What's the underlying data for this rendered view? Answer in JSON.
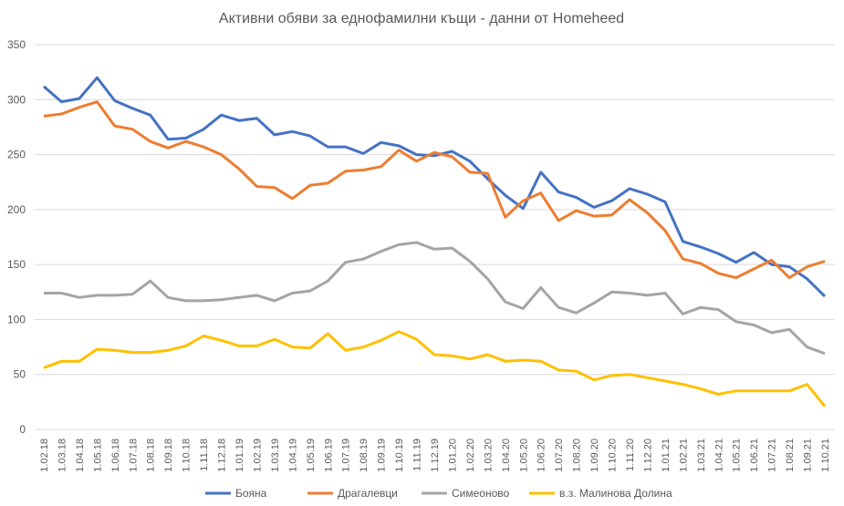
{
  "chart_data": {
    "type": "line",
    "title": "Активни обяви за еднофамилни къщи - данни от Homeheed",
    "xlabel": "",
    "ylabel": "",
    "ylim": [
      0,
      350
    ],
    "yticks": [
      0,
      50,
      100,
      150,
      200,
      250,
      300,
      350
    ],
    "grid": true,
    "legend_position": "bottom",
    "categories": [
      "1.02.18",
      "1.03.18",
      "1.04.18",
      "1.05.18",
      "1.06.18",
      "1.07.18",
      "1.08.18",
      "1.09.18",
      "1.10.18",
      "1.11.18",
      "1.12.18",
      "1.01.19",
      "1.02.19",
      "1.03.19",
      "1.04.19",
      "1.05.19",
      "1.06.19",
      "1.07.19",
      "1.08.19",
      "1.09.19",
      "1.10.19",
      "1.11.19",
      "1.12.19",
      "1.01.20",
      "1.02.20",
      "1.03.20",
      "1.04.20",
      "1.05.20",
      "1.06.20",
      "1.07.20",
      "1.08.20",
      "1.09.20",
      "1.10.20",
      "1.11.20",
      "1.12.20",
      "1.01.21",
      "1.02.21",
      "1.03.21",
      "1.04.21",
      "1.05.21",
      "1.06.21",
      "1.07.21",
      "1.08.21",
      "1.09.21",
      "1.10.21"
    ],
    "series": [
      {
        "name": "Бояна",
        "color": "#4472C4",
        "values": [
          312,
          298,
          301,
          320,
          299,
          292,
          286,
          264,
          265,
          273,
          286,
          281,
          283,
          268,
          271,
          267,
          257,
          257,
          251,
          261,
          258,
          250,
          249,
          253,
          244,
          228,
          213,
          201,
          234,
          216,
          211,
          202,
          208,
          219,
          214,
          207,
          171,
          166,
          160,
          152,
          161,
          150,
          148,
          137,
          121
        ]
      },
      {
        "name": "Драгалевци",
        "color": "#ED7D31",
        "values": [
          285,
          287,
          293,
          298,
          276,
          273,
          262,
          256,
          262,
          257,
          250,
          237,
          221,
          220,
          210,
          222,
          224,
          235,
          236,
          239,
          254,
          244,
          252,
          248,
          234,
          233,
          193,
          208,
          215,
          190,
          199,
          194,
          195,
          209,
          197,
          181,
          155,
          151,
          142,
          138,
          146,
          154,
          138,
          148,
          153
        ]
      },
      {
        "name": "Симеоново",
        "color": "#A5A5A5",
        "values": [
          124,
          124,
          120,
          122,
          122,
          123,
          135,
          120,
          117,
          117,
          118,
          120,
          122,
          117,
          124,
          126,
          135,
          152,
          155,
          162,
          168,
          170,
          164,
          165,
          153,
          137,
          116,
          110,
          129,
          111,
          106,
          115,
          125,
          124,
          122,
          124,
          105,
          111,
          109,
          98,
          95,
          88,
          91,
          75,
          69
        ]
      },
      {
        "name": "в.з. Малинова Долина",
        "color": "#FFC000",
        "values": [
          56,
          62,
          62,
          73,
          72,
          70,
          70,
          72,
          76,
          85,
          81,
          76,
          76,
          82,
          75,
          74,
          87,
          72,
          75,
          81,
          89,
          82,
          68,
          67,
          64,
          68,
          62,
          63,
          62,
          54,
          53,
          45,
          49,
          50,
          47,
          44,
          41,
          37,
          32,
          35,
          35,
          35,
          35,
          41,
          21
        ]
      }
    ]
  }
}
